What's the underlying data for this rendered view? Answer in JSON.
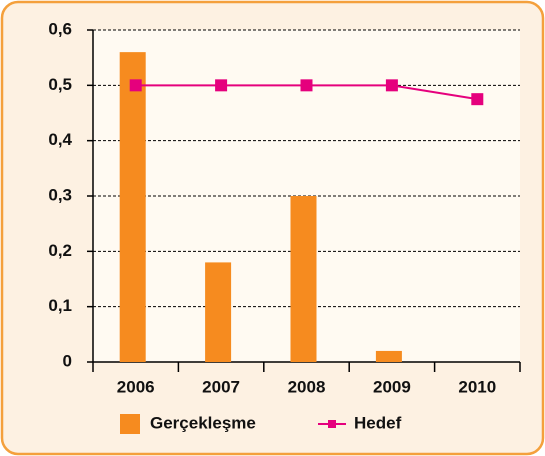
{
  "chart_data": {
    "type": "bar",
    "categories": [
      "2006",
      "2007",
      "2008",
      "2009",
      "2010"
    ],
    "series": [
      {
        "name": "Gerçekleşme",
        "type": "bar",
        "color": "#f68b1f",
        "values": [
          0.56,
          0.18,
          0.3,
          0.02,
          null
        ]
      },
      {
        "name": "Hedef",
        "type": "line",
        "color": "#e5007d",
        "values": [
          0.5,
          0.5,
          0.5,
          0.5,
          0.475
        ]
      }
    ],
    "ylim": [
      0,
      0.6
    ],
    "yticks": [
      0,
      {
        "value": 0.1,
        "label": "0,1"
      },
      {
        "value": 0.2,
        "label": "0,2"
      },
      {
        "value": 0.3,
        "label": "0,3"
      },
      {
        "value": 0.4,
        "label": "0,4"
      },
      {
        "value": 0.5,
        "label": "0,5"
      },
      {
        "value": 0.6,
        "label": "0,6"
      }
    ],
    "grid": true,
    "legend": "bottom"
  }
}
